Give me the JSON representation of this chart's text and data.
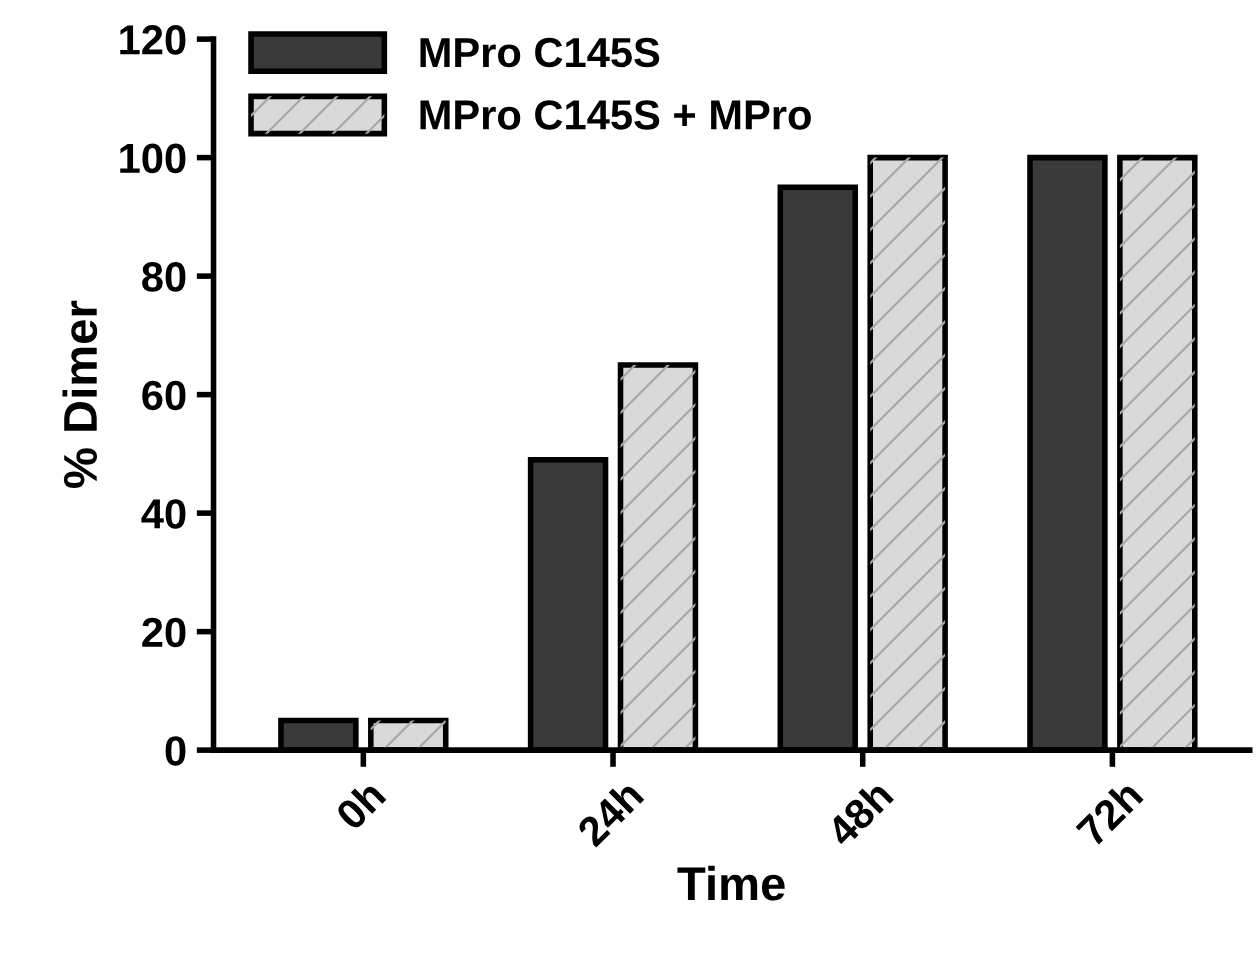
{
  "chart_data": {
    "type": "bar",
    "xlabel": "Time",
    "ylabel": "% Dimer",
    "categories": [
      "0h",
      "24h",
      "48h",
      "72h"
    ],
    "series": [
      {
        "name": "MPro C145S",
        "color": "#3a3a3a",
        "values": [
          5,
          49,
          95,
          100
        ]
      },
      {
        "name": "MPro C145S + MPro",
        "color": "#d9d9d9",
        "values": [
          5,
          65,
          100,
          100
        ]
      }
    ],
    "ylim": [
      0,
      120
    ],
    "yticks": [
      0,
      20,
      40,
      60,
      80,
      100,
      120
    ],
    "grid": false,
    "legend": "top left"
  }
}
